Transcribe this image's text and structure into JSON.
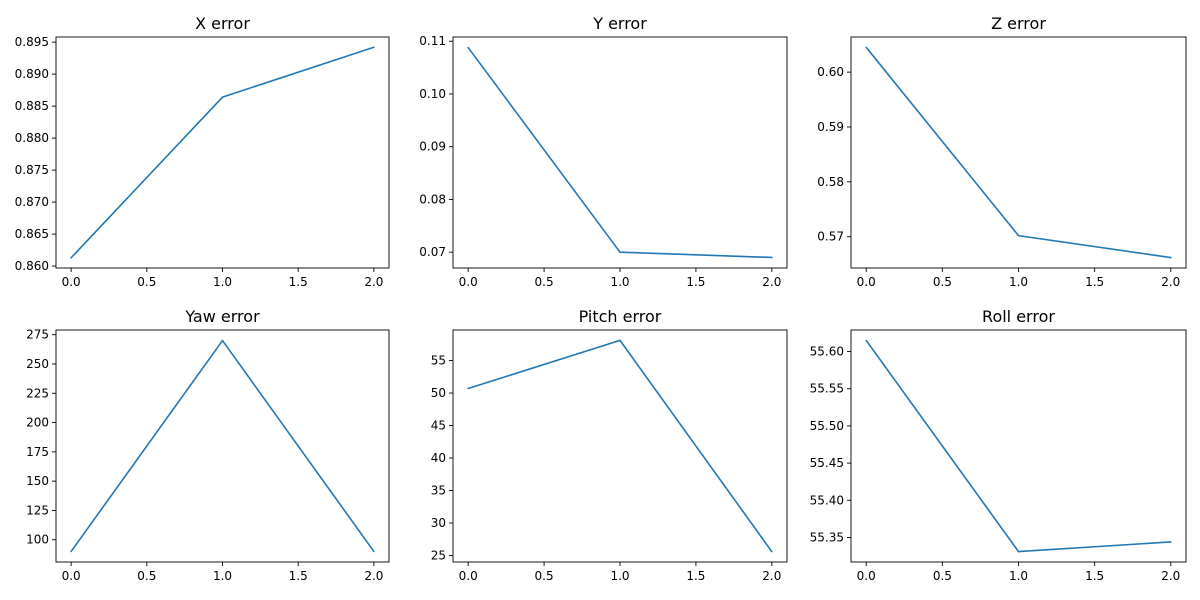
{
  "chart_data": [
    {
      "type": "line",
      "title": "X error",
      "xlabel": "",
      "ylabel": "",
      "x": [
        0,
        1,
        2
      ],
      "series": [
        {
          "values": [
            0.8613,
            0.8864,
            0.8942
          ]
        }
      ],
      "xlim": [
        -0.1,
        2.1
      ],
      "ylim": [
        0.8597,
        0.8958
      ],
      "xticks": [
        0.0,
        0.5,
        1.0,
        1.5,
        2.0
      ],
      "xtick_labels": [
        "0.0",
        "0.5",
        "1.0",
        "1.5",
        "2.0"
      ],
      "yticks": [
        0.86,
        0.865,
        0.87,
        0.875,
        0.88,
        0.885,
        0.89,
        0.895
      ],
      "ytick_labels": [
        "0.860",
        "0.865",
        "0.870",
        "0.875",
        "0.880",
        "0.885",
        "0.890",
        "0.895"
      ],
      "grid": false,
      "color": "#1f77b4"
    },
    {
      "type": "line",
      "title": "Y error",
      "xlabel": "",
      "ylabel": "",
      "x": [
        0,
        1,
        2
      ],
      "series": [
        {
          "values": [
            0.1088,
            0.07,
            0.069
          ]
        }
      ],
      "xlim": [
        -0.1,
        2.1
      ],
      "ylim": [
        0.067,
        0.1108
      ],
      "xticks": [
        0.0,
        0.5,
        1.0,
        1.5,
        2.0
      ],
      "xtick_labels": [
        "0.0",
        "0.5",
        "1.0",
        "1.5",
        "2.0"
      ],
      "yticks": [
        0.07,
        0.08,
        0.09,
        0.1,
        0.11
      ],
      "ytick_labels": [
        "0.07",
        "0.08",
        "0.09",
        "0.10",
        "0.11"
      ],
      "grid": false,
      "color": "#1f77b4"
    },
    {
      "type": "line",
      "title": "Z error",
      "xlabel": "",
      "ylabel": "",
      "x": [
        0,
        1,
        2
      ],
      "series": [
        {
          "values": [
            0.6045,
            0.5702,
            0.5662
          ]
        }
      ],
      "xlim": [
        -0.1,
        2.1
      ],
      "ylim": [
        0.5643,
        0.6064
      ],
      "xticks": [
        0.0,
        0.5,
        1.0,
        1.5,
        2.0
      ],
      "xtick_labels": [
        "0.0",
        "0.5",
        "1.0",
        "1.5",
        "2.0"
      ],
      "yticks": [
        0.57,
        0.58,
        0.59,
        0.6
      ],
      "ytick_labels": [
        "0.57",
        "0.58",
        "0.59",
        "0.60"
      ],
      "grid": false,
      "color": "#1f77b4"
    },
    {
      "type": "line",
      "title": "Yaw error",
      "xlabel": "",
      "ylabel": "",
      "x": [
        0,
        1,
        2
      ],
      "series": [
        {
          "values": [
            90,
            270,
            90
          ]
        }
      ],
      "xlim": [
        -0.1,
        2.1
      ],
      "ylim": [
        81,
        279
      ],
      "xticks": [
        0.0,
        0.5,
        1.0,
        1.5,
        2.0
      ],
      "xtick_labels": [
        "0.0",
        "0.5",
        "1.0",
        "1.5",
        "2.0"
      ],
      "yticks": [
        100,
        125,
        150,
        175,
        200,
        225,
        250,
        275
      ],
      "ytick_labels": [
        "100",
        "125",
        "150",
        "175",
        "200",
        "225",
        "250",
        "275"
      ],
      "grid": false,
      "color": "#1f77b4"
    },
    {
      "type": "line",
      "title": "Pitch error",
      "xlabel": "",
      "ylabel": "",
      "x": [
        0,
        1,
        2
      ],
      "series": [
        {
          "values": [
            50.7,
            58.1,
            25.6
          ]
        }
      ],
      "xlim": [
        -0.1,
        2.1
      ],
      "ylim": [
        24.0,
        59.7
      ],
      "xticks": [
        0.0,
        0.5,
        1.0,
        1.5,
        2.0
      ],
      "xtick_labels": [
        "0.0",
        "0.5",
        "1.0",
        "1.5",
        "2.0"
      ],
      "yticks": [
        25,
        30,
        35,
        40,
        45,
        50,
        55
      ],
      "ytick_labels": [
        "25",
        "30",
        "35",
        "40",
        "45",
        "50",
        "55"
      ],
      "grid": false,
      "color": "#1f77b4"
    },
    {
      "type": "line",
      "title": "Roll error",
      "xlabel": "",
      "ylabel": "",
      "x": [
        0,
        1,
        2
      ],
      "series": [
        {
          "values": [
            55.615,
            55.331,
            55.344
          ]
        }
      ],
      "xlim": [
        -0.1,
        2.1
      ],
      "ylim": [
        55.317,
        55.629
      ],
      "xticks": [
        0.0,
        0.5,
        1.0,
        1.5,
        2.0
      ],
      "xtick_labels": [
        "0.0",
        "0.5",
        "1.0",
        "1.5",
        "2.0"
      ],
      "yticks": [
        55.35,
        55.4,
        55.45,
        55.5,
        55.55,
        55.6
      ],
      "ytick_labels": [
        "55.35",
        "55.40",
        "55.45",
        "55.50",
        "55.55",
        "55.60"
      ],
      "grid": false,
      "color": "#1f77b4"
    }
  ]
}
